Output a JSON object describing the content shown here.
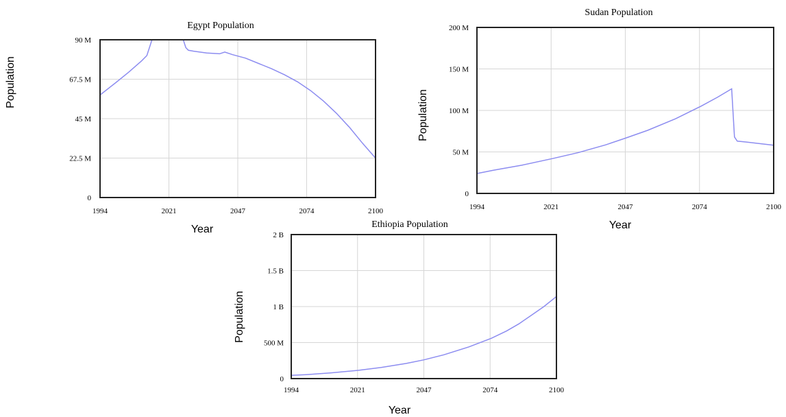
{
  "colors": {
    "series": "#8c8cf0"
  },
  "chart_data": [
    {
      "id": "egypt",
      "type": "line",
      "title": "Egypt Population",
      "xlabel": "Year",
      "ylabel": "Population",
      "xlim": [
        1994,
        2100
      ],
      "ylim": [
        0,
        90000000
      ],
      "x_ticks": [
        "1994",
        "2021",
        "2047",
        "2074",
        "2100"
      ],
      "y_ticks": [
        "0",
        "22.5 M",
        "45 M",
        "67.5 M",
        "90 M"
      ],
      "series": [
        {
          "x": [
            1994,
            2000,
            2005,
            2010,
            2012,
            2014,
            2020,
            2025,
            2026,
            2027,
            2028,
            2030,
            2035,
            2040,
            2042,
            2045,
            2050,
            2055,
            2060,
            2065,
            2070,
            2075,
            2080,
            2085,
            2090,
            2095,
            2100
          ],
          "values": [
            58500000,
            65500000,
            71500000,
            78000000,
            81000000,
            90000000,
            90000000,
            90000000,
            90000000,
            85500000,
            84000000,
            83500000,
            82500000,
            82000000,
            83000000,
            81500000,
            79500000,
            76500000,
            73500000,
            70000000,
            66000000,
            61000000,
            55000000,
            48000000,
            40000000,
            31000000,
            22500000
          ]
        }
      ]
    },
    {
      "id": "sudan",
      "type": "line",
      "title": "Sudan Population",
      "xlabel": "Year",
      "ylabel": "Population",
      "xlim": [
        1994,
        2100
      ],
      "ylim": [
        0,
        200000000
      ],
      "x_ticks": [
        "1994",
        "2021",
        "2047",
        "2074",
        "2100"
      ],
      "y_ticks": [
        "0",
        "50 M",
        "100 M",
        "150 M",
        "200 M"
      ],
      "series": [
        {
          "x": [
            1994,
            2000,
            2010,
            2021,
            2030,
            2040,
            2047,
            2055,
            2065,
            2074,
            2080,
            2085,
            2086,
            2087,
            2090,
            2100
          ],
          "values": [
            24000000,
            28000000,
            34000000,
            42000000,
            49000000,
            58500000,
            66500000,
            76000000,
            90000000,
            105000000,
            116000000,
            126000000,
            68000000,
            63000000,
            62000000,
            58000000
          ]
        }
      ]
    },
    {
      "id": "ethiopia",
      "type": "line",
      "title": "Ethiopia Population",
      "xlabel": "Year",
      "ylabel": "Population",
      "xlim": [
        1994,
        2100
      ],
      "ylim": [
        0,
        2000000000
      ],
      "x_ticks": [
        "1994",
        "2021",
        "2047",
        "2074",
        "2100"
      ],
      "y_ticks": [
        "0",
        "500 M",
        "1 B",
        "1.5 B",
        "2 B"
      ],
      "series": [
        {
          "x": [
            1994,
            2000,
            2010,
            2021,
            2030,
            2040,
            2047,
            2055,
            2065,
            2074,
            2080,
            2085,
            2090,
            2095,
            2100
          ],
          "values": [
            45000000,
            55000000,
            80000000,
            115000000,
            155000000,
            210000000,
            260000000,
            330000000,
            440000000,
            560000000,
            660000000,
            760000000,
            880000000,
            1000000000,
            1140000000
          ]
        }
      ]
    }
  ]
}
